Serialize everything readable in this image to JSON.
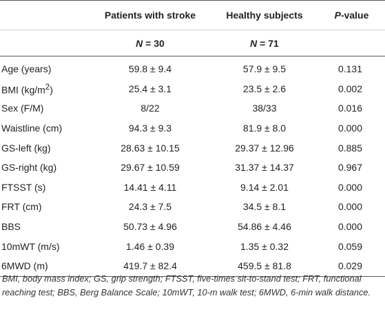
{
  "table": {
    "headers": {
      "group1": "Patients with stroke",
      "group2": "Healthy subjects",
      "pvalue_letter": "P",
      "pvalue_suffix": "-value",
      "n_label1": "N",
      "n_value1": " = 30",
      "n_label2": "N",
      "n_value2": " = 71"
    },
    "rows": [
      {
        "label": "Age (years)",
        "stroke": "59.8 ± 9.4",
        "healthy": "57.9 ± 9.5",
        "p": "0.131"
      },
      {
        "label_base": "BMI (kg/m",
        "label_sup": "2",
        "label_end": ")",
        "stroke": "25.4 ± 3.1",
        "healthy": "23.5 ± 2.6",
        "p": "0.002"
      },
      {
        "label": "Sex (F/M)",
        "stroke": "8/22",
        "healthy": "38/33",
        "p": "0.016"
      },
      {
        "label": "Waistline (cm)",
        "stroke": "94.3 ± 9.3",
        "healthy": "81.9 ± 8.0",
        "p": "0.000"
      },
      {
        "label": "GS-left (kg)",
        "stroke": "28.63 ± 10.15",
        "healthy": "29.37 ± 12.96",
        "p": "0.885"
      },
      {
        "label": "GS-right (kg)",
        "stroke": "29.67 ± 10.59",
        "healthy": "31.37 ± 14.37",
        "p": "0.967"
      },
      {
        "label": "FTSST (s)",
        "stroke": "14.41 ± 4.11",
        "healthy": "9.14 ± 2.01",
        "p": "0.000"
      },
      {
        "label": "FRT (cm)",
        "stroke": "24.3 ± 7.5",
        "healthy": "34.5 ± 8.1",
        "p": "0.000"
      },
      {
        "label": "BBS",
        "stroke": "50.73 ± 4.96",
        "healthy": "54.86 ± 4.46",
        "p": "0.000"
      },
      {
        "label": "10mWT (m/s)",
        "stroke": "1.46 ± 0.39",
        "healthy": "1.35 ± 0.32",
        "p": "0.059"
      },
      {
        "label": "6MWD (m)",
        "stroke": "419.7 ± 82.4",
        "healthy": "459.5 ± 81.8",
        "p": "0.029"
      }
    ]
  },
  "footnote": "BMI, body mass index; GS, grip strength; FTSST, five-times sit-to-stand test; FRT, functional reaching test; BBS, Berg Balance Scale; 10mWT, 10-m walk test; 6MWD, 6-min walk distance."
}
